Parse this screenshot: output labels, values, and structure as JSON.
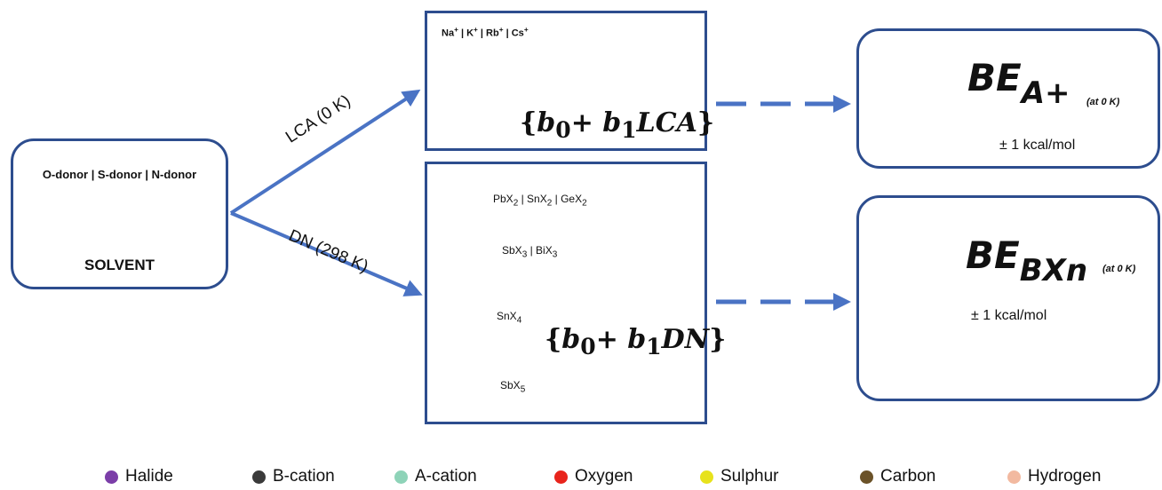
{
  "solvent": {
    "donors": "O-donor | S-donor | N-donor",
    "label": "SOLVENT"
  },
  "arrows": {
    "upper": "LCA (0 K)",
    "lower": "DN (298 K)"
  },
  "lca_box": {
    "cations_html": "Na<sup class='s'>+</sup> | K<sup class='s'>+</sup> | Rb<sup class='s'>+</sup> | Cs<sup class='s'>+</sup>",
    "formula_html": "{<i>b</i><sub>0</sub>+ <i>b</i><sub>1</sub><i>LCA</i>}"
  },
  "dn_box": {
    "rows_html": [
      "PbX<sub>2</sub> | SnX<sub>2</sub> | GeX<sub>2</sub>",
      "SbX<sub>3</sub> | BiX<sub>3</sub>",
      "SnX<sub>4</sub>",
      "SbX<sub>5</sub>"
    ],
    "formula_html": "{<i>b</i><sub>0</sub>+ <i>b</i><sub>1</sub><i>DN</i>}"
  },
  "result_a": {
    "be_main": "BE",
    "be_sub": "A+",
    "note": "(at 0 K)",
    "accuracy": "± 1 kcal/mol"
  },
  "result_b": {
    "be_main": "BE",
    "be_sub": "BXn",
    "note": "(at 0 K)",
    "accuracy": "± 1 kcal/mol"
  },
  "legend": [
    {
      "label": "Halide",
      "color": "#7b3ea8"
    },
    {
      "label": "B-cation",
      "color": "#3a3a3a"
    },
    {
      "label": "A-cation",
      "color": "#8ed3b8"
    },
    {
      "label": "Oxygen",
      "color": "#e8241c"
    },
    {
      "label": "Sulphur",
      "color": "#e7e21c"
    },
    {
      "label": "Carbon",
      "color": "#6b5228"
    },
    {
      "label": "Hydrogen",
      "color": "#f2b9a0"
    }
  ],
  "colors": {
    "frame": "#2d4d8e",
    "arrow": "#4a73c4",
    "sphere": "#3cc7b5"
  }
}
